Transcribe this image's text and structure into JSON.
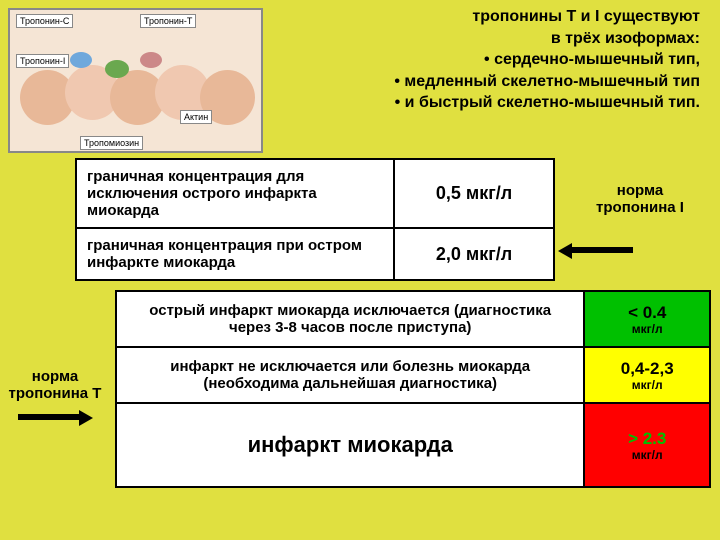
{
  "header": {
    "line1": "тропонины Т и I существуют",
    "line2": "в трёх изоформах:",
    "b1": "•   сердечно-мышечный тип,",
    "b2": "•    медленный скелетно-мышечный тип",
    "b3": "•     и быстрый скелетно-мышечный тип."
  },
  "diagram_labels": {
    "l1": "Тропонин-С",
    "l2": "Тропонин-I",
    "l3": "Тропонин-Т",
    "l4": "Тропомиозин",
    "l5": "Актин"
  },
  "table1": {
    "r1_label": "граничная концентрация для исключения острого инфаркта миокарда",
    "r1_value": "0,5 мкг/л",
    "r2_label": "граничная концентрация при остром инфаркте миокарда",
    "r2_value": "2,0 мкг/л"
  },
  "norm_i": "норма тропонина I",
  "norm_t": "норма тропонина T",
  "table2": {
    "rows": [
      {
        "desc": "острый инфаркт миокарда исключается (диагностика через 3-8 часов после приступа)",
        "val": "< 0.4",
        "unit": "мкг/л",
        "bg": "#00c000",
        "valcolor": "#000000",
        "big": false
      },
      {
        "desc": "инфаркт не исключается или болезнь миокарда (необходима дальнейшая диагностика)",
        "val": "0,4-2,3",
        "unit": "мкг/л",
        "bg": "#ffff00",
        "valcolor": "#000000",
        "big": false
      },
      {
        "desc": "инфаркт миокарда",
        "val": "> 2.3",
        "unit": "мкг/л",
        "bg": "#ff0000",
        "valcolor": "#00c000",
        "big": true
      }
    ]
  },
  "colors": {
    "page_bg": "#e0e040"
  }
}
